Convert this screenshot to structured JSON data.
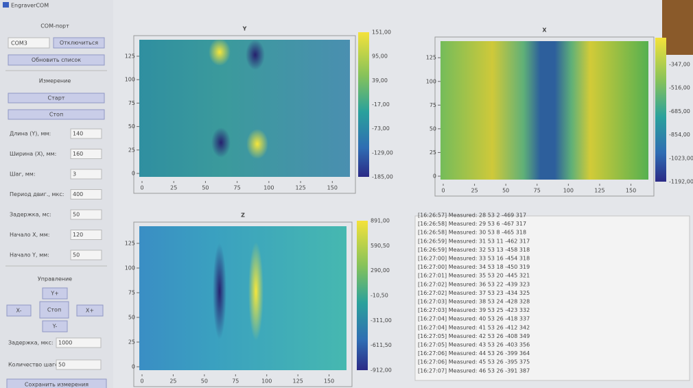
{
  "window_title": "EngraverCOM",
  "port": {
    "heading": "COM-порт",
    "selected": "COM3",
    "disconnect": "Отключиться",
    "refresh": "Обновить список"
  },
  "measurement": {
    "heading": "Измерение",
    "start": "Старт",
    "stop": "Стоп",
    "fields": [
      {
        "label": "Длина (Y), мм:",
        "value": "140"
      },
      {
        "label": "Ширина (X), мм:",
        "value": "160"
      },
      {
        "label": "Шаг, мм:",
        "value": "3"
      },
      {
        "label": "Период двиг., мкс:",
        "value": "400"
      },
      {
        "label": "Задержка, мс:",
        "value": "50"
      },
      {
        "label": "Начало X, мм:",
        "value": "120"
      },
      {
        "label": "Начало Y, мм:",
        "value": "50"
      }
    ]
  },
  "control": {
    "heading": "Управление",
    "up": "Y+",
    "left": "X-",
    "stop": "Стоп",
    "right": "X+",
    "down": "Y-",
    "fields": [
      {
        "label": "Задержка, мкс:",
        "value": "1000"
      },
      {
        "label": "Количество шагов:",
        "value": "50"
      }
    ],
    "save": "Сохранить измерения"
  },
  "plots": [
    {
      "title": "Y",
      "xticks": [
        "0",
        "25",
        "50",
        "75",
        "100",
        "125",
        "150"
      ],
      "yticks": [
        "0",
        "25",
        "50",
        "75",
        "100",
        "125"
      ],
      "colorbar": [
        "151,00",
        "95,00",
        "39,00",
        "-17,00",
        "-73,00",
        "-129,00",
        "-185,00"
      ]
    },
    {
      "title": "X",
      "xticks": [
        "0",
        "25",
        "50",
        "75",
        "100",
        "125",
        "150"
      ],
      "yticks": [
        "0",
        "25",
        "50",
        "75",
        "100",
        "125"
      ],
      "colorbar": [
        "-347,00",
        "-516,00",
        "-685,00",
        "-854,00",
        "-1023,00",
        "-1192,00"
      ]
    },
    {
      "title": "Z",
      "xticks": [
        "0",
        "25",
        "50",
        "75",
        "100",
        "125",
        "150"
      ],
      "yticks": [
        "0",
        "25",
        "50",
        "75",
        "100",
        "125"
      ],
      "colorbar": [
        "891,00",
        "590,50",
        "290,00",
        "-10,50",
        "-311,00",
        "-611,50",
        "-912,00"
      ]
    }
  ],
  "log": [
    "[16:26:57] Measured: 28 53 2 -469 317",
    "[16:26:58] Measured: 29 53 6 -467 317",
    "[16:26:58] Measured: 30 53 8 -465 318",
    "[16:26:59] Measured: 31 53 11 -462 317",
    "[16:26:59] Measured: 32 53 13 -458 318",
    "[16:27:00] Measured: 33 53 16 -454 318",
    "[16:27:00] Measured: 34 53 18 -450 319",
    "[16:27:01] Measured: 35 53 20 -445 321",
    "[16:27:02] Measured: 36 53 22 -439 323",
    "[16:27:02] Measured: 37 53 23 -434 325",
    "[16:27:03] Measured: 38 53 24 -428 328",
    "[16:27:03] Measured: 39 53 25 -423 332",
    "[16:27:04] Measured: 40 53 26 -418 337",
    "[16:27:04] Measured: 41 53 26 -412 342",
    "[16:27:05] Measured: 42 53 26 -408 349",
    "[16:27:05] Measured: 43 53 26 -403 356",
    "[16:27:06] Measured: 44 53 26 -399 364",
    "[16:27:06] Measured: 45 53 26 -395 375",
    "[16:27:07] Measured: 46 53 26 -391 387"
  ]
}
